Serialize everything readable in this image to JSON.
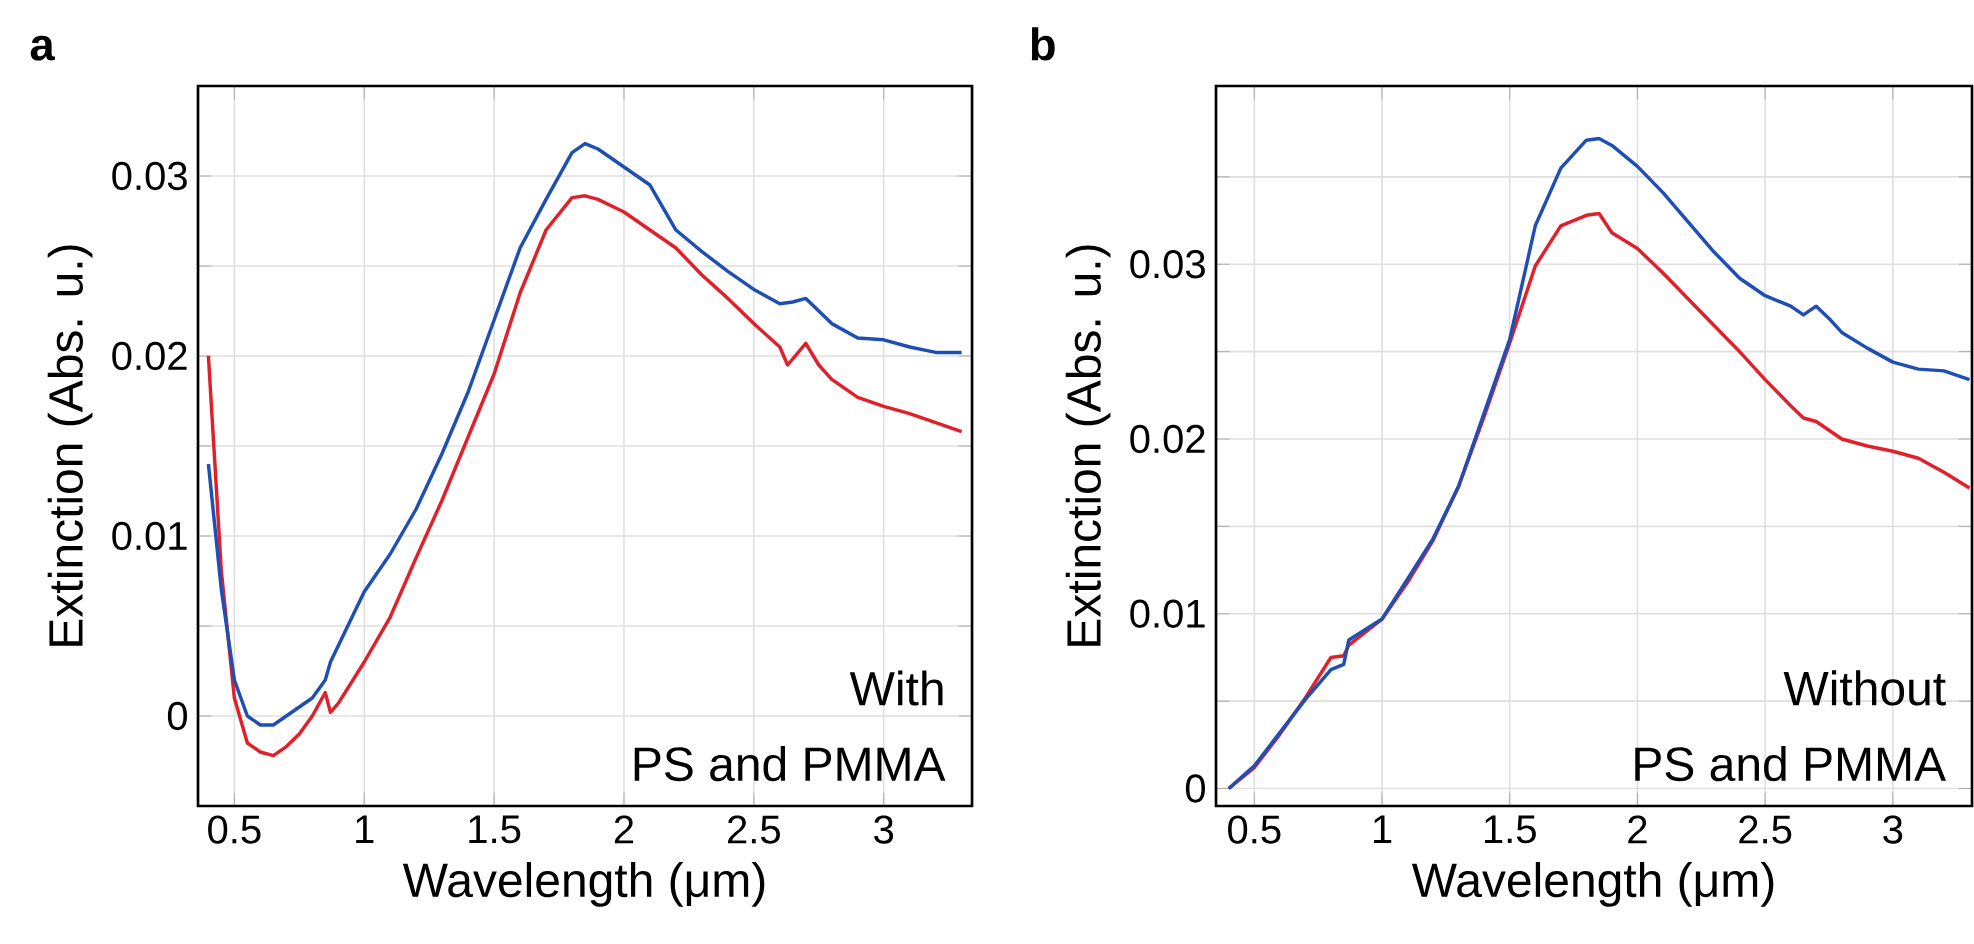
{
  "chart_data": [
    {
      "type": "line",
      "title": "a",
      "xlabel": "Wavelength (μm)",
      "ylabel": "Extinction (Abs. u.)",
      "xlim": [
        0.36,
        3.34
      ],
      "ylim": [
        -0.005,
        0.035
      ],
      "xticks": [
        0.5,
        1,
        1.5,
        2,
        2.5,
        3
      ],
      "yticks": [
        {
          "value": -0.005,
          "label": null
        },
        0,
        {
          "value": 0.005,
          "label": null
        },
        0.01,
        {
          "value": 0.015,
          "label": null
        },
        0.02,
        {
          "value": 0.025,
          "label": null
        },
        0.03,
        {
          "value": 0.035,
          "label": null
        }
      ],
      "grid": true,
      "annotations": [
        "With",
        "PS and PMMA"
      ],
      "series": [
        {
          "color": "#e0202a",
          "x": [
            0.4,
            0.45,
            0.5,
            0.55,
            0.6,
            0.65,
            0.7,
            0.75,
            0.8,
            0.85,
            0.87,
            0.9,
            1.0,
            1.1,
            1.2,
            1.3,
            1.4,
            1.5,
            1.6,
            1.7,
            1.8,
            1.85,
            1.9,
            2.0,
            2.1,
            2.2,
            2.3,
            2.4,
            2.5,
            2.6,
            2.63,
            2.7,
            2.75,
            2.8,
            2.9,
            3.0,
            3.1,
            3.2,
            3.3
          ],
          "values": [
            0.02,
            0.008,
            0.001,
            -0.0015,
            -0.002,
            -0.0022,
            -0.0017,
            -0.001,
            0.0,
            0.0013,
            0.0002,
            0.0007,
            0.003,
            0.0055,
            0.0088,
            0.012,
            0.0155,
            0.019,
            0.0235,
            0.027,
            0.0288,
            0.0289,
            0.0287,
            0.028,
            0.027,
            0.026,
            0.0245,
            0.0232,
            0.0218,
            0.0205,
            0.0195,
            0.0207,
            0.0195,
            0.0187,
            0.0177,
            0.0172,
            0.0168,
            0.0163,
            0.0158
          ]
        },
        {
          "color": "#1f4fb4",
          "x": [
            0.4,
            0.45,
            0.5,
            0.55,
            0.6,
            0.65,
            0.7,
            0.75,
            0.8,
            0.85,
            0.87,
            0.9,
            1.0,
            1.1,
            1.2,
            1.3,
            1.4,
            1.5,
            1.6,
            1.7,
            1.8,
            1.85,
            1.9,
            2.0,
            2.1,
            2.2,
            2.3,
            2.4,
            2.5,
            2.6,
            2.65,
            2.7,
            2.75,
            2.8,
            2.9,
            3.0,
            3.1,
            3.2,
            3.3
          ],
          "values": [
            0.014,
            0.007,
            0.002,
            0.0,
            -0.0005,
            -0.0005,
            0.0,
            0.0005,
            0.001,
            0.002,
            0.003,
            0.0039,
            0.0069,
            0.009,
            0.0115,
            0.0146,
            0.018,
            0.022,
            0.026,
            0.0287,
            0.0313,
            0.0318,
            0.0315,
            0.0305,
            0.0295,
            0.027,
            0.0258,
            0.0247,
            0.0237,
            0.0229,
            0.023,
            0.0232,
            0.0225,
            0.0218,
            0.021,
            0.0209,
            0.0205,
            0.0202,
            0.0202
          ]
        }
      ]
    },
    {
      "type": "line",
      "title": "b",
      "xlabel": "Wavelength (μm)",
      "ylabel": "Extinction (Abs. u.)",
      "xlim": [
        0.35,
        3.31
      ],
      "ylim": [
        -0.001,
        0.0402
      ],
      "xticks": [
        0.5,
        1,
        1.5,
        2,
        2.5,
        3
      ],
      "yticks": [
        0,
        {
          "value": 0.005,
          "label": null
        },
        0.01,
        {
          "value": 0.015,
          "label": null
        },
        0.02,
        {
          "value": 0.025,
          "label": null
        },
        0.03,
        {
          "value": 0.035,
          "label": null
        }
      ],
      "grid": true,
      "annotations": [
        "Without",
        "PS and PMMA"
      ],
      "series": [
        {
          "color": "#e0202a",
          "x": [
            0.4,
            0.5,
            0.6,
            0.7,
            0.8,
            0.85,
            0.87,
            1.0,
            1.1,
            1.2,
            1.3,
            1.4,
            1.5,
            1.6,
            1.7,
            1.8,
            1.85,
            1.9,
            2.0,
            2.1,
            2.2,
            2.3,
            2.4,
            2.5,
            2.6,
            2.65,
            2.7,
            2.8,
            2.9,
            3.0,
            3.1,
            3.2,
            3.3
          ],
          "values": [
            0.0,
            0.0012,
            0.0031,
            0.0052,
            0.0075,
            0.0076,
            0.0082,
            0.0097,
            0.0118,
            0.0142,
            0.0173,
            0.0213,
            0.0255,
            0.0299,
            0.0322,
            0.0328,
            0.0329,
            0.0318,
            0.0309,
            0.0295,
            0.028,
            0.0265,
            0.025,
            0.0234,
            0.0219,
            0.0212,
            0.021,
            0.02,
            0.0196,
            0.0193,
            0.0189,
            0.0181,
            0.0172
          ]
        },
        {
          "color": "#1f4fb4",
          "x": [
            0.4,
            0.5,
            0.6,
            0.7,
            0.8,
            0.85,
            0.87,
            1.0,
            1.1,
            1.2,
            1.3,
            1.4,
            1.5,
            1.6,
            1.7,
            1.8,
            1.85,
            1.9,
            2.0,
            2.1,
            2.2,
            2.3,
            2.4,
            2.5,
            2.6,
            2.65,
            2.7,
            2.75,
            2.8,
            2.9,
            3.0,
            3.1,
            3.2,
            3.3
          ],
          "values": [
            0.0,
            0.0013,
            0.0032,
            0.0051,
            0.0068,
            0.0071,
            0.0085,
            0.0097,
            0.012,
            0.0143,
            0.0173,
            0.0215,
            0.0257,
            0.0322,
            0.0355,
            0.0371,
            0.0372,
            0.0368,
            0.0356,
            0.0341,
            0.0324,
            0.0307,
            0.0292,
            0.0282,
            0.0276,
            0.0271,
            0.0276,
            0.0269,
            0.0261,
            0.0252,
            0.0244,
            0.024,
            0.0239,
            0.0234
          ]
        }
      ]
    }
  ]
}
